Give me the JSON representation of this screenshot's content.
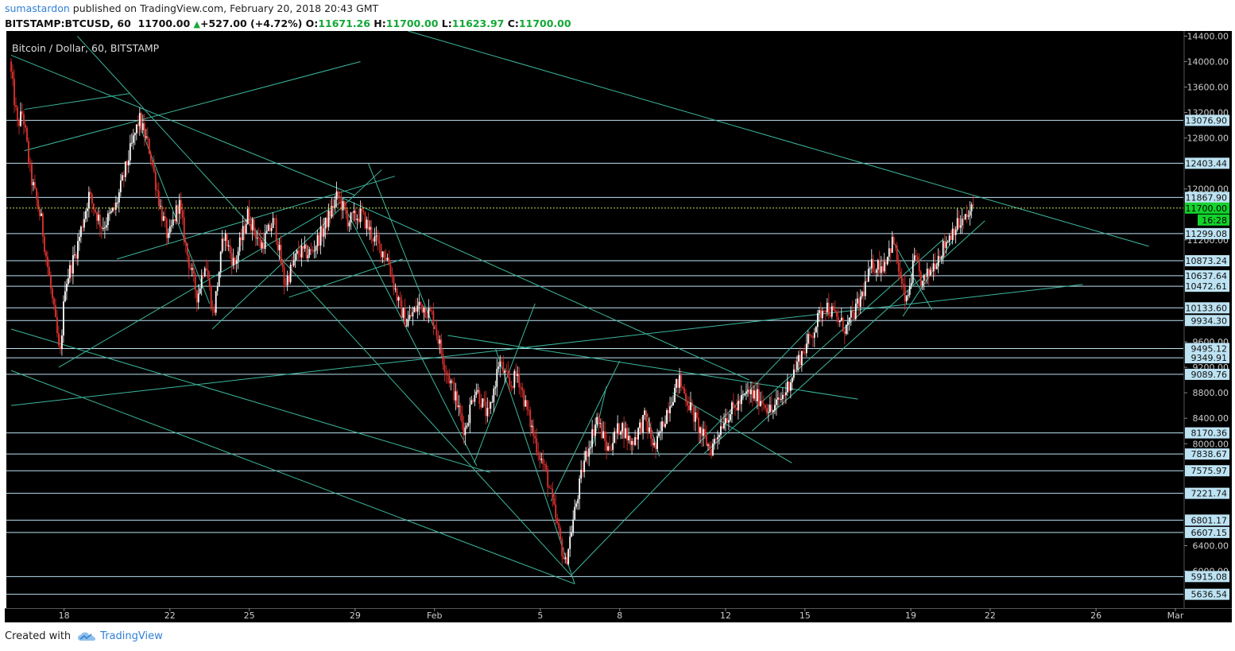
{
  "header": {
    "author": "sumastardon",
    "published_text": "published on TradingView.com, February 20, 2018 20:43 GMT",
    "symbol": "BITSTAMP:BTCUSD, 60",
    "last": "11700.00",
    "change": "+527.00 (+4.72%)",
    "o_label": "O:",
    "o_value": "11671.26",
    "h_label": "H:",
    "h_value": "11700.00",
    "l_label": "L:",
    "l_value": "11623.97",
    "c_label": "C:",
    "c_value": "11700.00"
  },
  "footer": {
    "created_with": "Created with",
    "brand": "TradingView"
  },
  "colors": {
    "background": "#000000",
    "trendline": "#3cb79e",
    "hline": "#bde3f3",
    "label_bg": "#bde3f3",
    "candle_up": "#ffffff",
    "candle_down": "#e0322f",
    "price_highlight": "#13d32c",
    "last_price_line": "#b8e05a"
  },
  "chart_data": {
    "type": "candlestick",
    "title": "Bitcoin / Dollar, 60, BITSTAMP",
    "y_ticks": [
      14400,
      14000,
      13600,
      13200,
      12800,
      12400,
      12000,
      11600,
      11200,
      10800,
      10400,
      10000,
      9600,
      9200,
      8800,
      8400,
      8000,
      7600,
      7200,
      6800,
      6400,
      6000
    ],
    "y_tick_labels": [
      "14400.00",
      "14000.00",
      "13600.00",
      "13200.00",
      "12800.00",
      "",
      "12000.00",
      "",
      "11200.00",
      "",
      "",
      "",
      "9600.00",
      "9200.00",
      "8800.00",
      "8400.00",
      "8000.00",
      "",
      "",
      "",
      "6400.00",
      "6000.00"
    ],
    "ylim": [
      5420,
      14480
    ],
    "x_ticks": [
      {
        "label": "18",
        "day": 2
      },
      {
        "label": "22",
        "day": 6
      },
      {
        "label": "25",
        "day": 9
      },
      {
        "label": "29",
        "day": 13
      },
      {
        "label": "Feb",
        "day": 16
      },
      {
        "label": "5",
        "day": 20
      },
      {
        "label": "8",
        "day": 23
      },
      {
        "label": "12",
        "day": 27
      },
      {
        "label": "15",
        "day": 30
      },
      {
        "label": "19",
        "day": 34
      },
      {
        "label": "22",
        "day": 37
      },
      {
        "label": "26",
        "day": 41
      },
      {
        "label": "Mar",
        "day": 44
      }
    ],
    "levels": [
      {
        "value": 13076.9,
        "label": "13076.90"
      },
      {
        "value": 12403.44,
        "label": "12403.44"
      },
      {
        "value": 11867.9,
        "label": "11867.90"
      },
      {
        "value": 11299.08,
        "label": "11299.08"
      },
      {
        "value": 10873.24,
        "label": "10873.24"
      },
      {
        "value": 10637.64,
        "label": "10637.64"
      },
      {
        "value": 10472.61,
        "label": "10472.61"
      },
      {
        "value": 10133.6,
        "label": "10133.60"
      },
      {
        "value": 9934.3,
        "label": "9934.30"
      },
      {
        "value": 9495.12,
        "label": "9495.12"
      },
      {
        "value": 9349.91,
        "label": "9349.91"
      },
      {
        "value": 9089.76,
        "label": "9089.76"
      },
      {
        "value": 8170.36,
        "label": "8170.36"
      },
      {
        "value": 7838.67,
        "label": "7838.67"
      },
      {
        "value": 7575.97,
        "label": "7575.97"
      },
      {
        "value": 7221.74,
        "label": "7221.74"
      },
      {
        "value": 6801.17,
        "label": "6801.17"
      },
      {
        "value": 6607.15,
        "label": "6607.15"
      },
      {
        "value": 5915.08,
        "label": "5915.08"
      },
      {
        "value": 5636.54,
        "label": "5636.54"
      }
    ],
    "last_price": {
      "value": 11700.0,
      "label": "11700.00",
      "countdown": "16:28"
    },
    "price_path": [
      {
        "day": 0.0,
        "price": 14000
      },
      {
        "day": 0.3,
        "price": 13000
      },
      {
        "day": 0.5,
        "price": 13200
      },
      {
        "day": 0.8,
        "price": 12200
      },
      {
        "day": 1.2,
        "price": 11500
      },
      {
        "day": 1.5,
        "price": 10600
      },
      {
        "day": 1.8,
        "price": 9700
      },
      {
        "day": 1.9,
        "price": 9300
      },
      {
        "day": 2.1,
        "price": 10500
      },
      {
        "day": 2.5,
        "price": 11000
      },
      {
        "day": 3.0,
        "price": 11900
      },
      {
        "day": 3.5,
        "price": 11400
      },
      {
        "day": 4.0,
        "price": 11700
      },
      {
        "day": 4.5,
        "price": 12500
      },
      {
        "day": 4.9,
        "price": 13100
      },
      {
        "day": 5.3,
        "price": 12600
      },
      {
        "day": 5.7,
        "price": 11700
      },
      {
        "day": 6.0,
        "price": 11200
      },
      {
        "day": 6.4,
        "price": 11800
      },
      {
        "day": 6.7,
        "price": 11000
      },
      {
        "day": 7.1,
        "price": 10300
      },
      {
        "day": 7.4,
        "price": 10900
      },
      {
        "day": 7.7,
        "price": 10000
      },
      {
        "day": 8.1,
        "price": 11300
      },
      {
        "day": 8.5,
        "price": 10800
      },
      {
        "day": 9.0,
        "price": 11600
      },
      {
        "day": 9.5,
        "price": 11100
      },
      {
        "day": 10.0,
        "price": 11500
      },
      {
        "day": 10.4,
        "price": 10500
      },
      {
        "day": 10.9,
        "price": 11000
      },
      {
        "day": 11.4,
        "price": 11000
      },
      {
        "day": 11.9,
        "price": 11400
      },
      {
        "day": 12.4,
        "price": 11900
      },
      {
        "day": 12.8,
        "price": 11500
      },
      {
        "day": 13.3,
        "price": 11600
      },
      {
        "day": 13.8,
        "price": 11200
      },
      {
        "day": 14.3,
        "price": 10900
      },
      {
        "day": 14.7,
        "price": 10200
      },
      {
        "day": 15.0,
        "price": 9900
      },
      {
        "day": 15.5,
        "price": 10200
      },
      {
        "day": 16.0,
        "price": 10000
      },
      {
        "day": 16.4,
        "price": 9300
      },
      {
        "day": 16.8,
        "price": 8800
      },
      {
        "day": 17.2,
        "price": 8200
      },
      {
        "day": 17.6,
        "price": 8900
      },
      {
        "day": 18.1,
        "price": 8400
      },
      {
        "day": 18.5,
        "price": 9300
      },
      {
        "day": 18.9,
        "price": 8900
      },
      {
        "day": 19.2,
        "price": 9100
      },
      {
        "day": 19.5,
        "price": 8600
      },
      {
        "day": 19.9,
        "price": 8000
      },
      {
        "day": 20.3,
        "price": 7500
      },
      {
        "day": 20.7,
        "price": 6700
      },
      {
        "day": 21.0,
        "price": 6100
      },
      {
        "day": 21.3,
        "price": 6800
      },
      {
        "day": 21.7,
        "price": 7700
      },
      {
        "day": 22.2,
        "price": 8400
      },
      {
        "day": 22.6,
        "price": 7900
      },
      {
        "day": 23.1,
        "price": 8300
      },
      {
        "day": 23.5,
        "price": 8000
      },
      {
        "day": 24.0,
        "price": 8400
      },
      {
        "day": 24.4,
        "price": 7900
      },
      {
        "day": 24.9,
        "price": 8600
      },
      {
        "day": 25.3,
        "price": 9000
      },
      {
        "day": 25.7,
        "price": 8600
      },
      {
        "day": 26.1,
        "price": 8200
      },
      {
        "day": 26.5,
        "price": 7900
      },
      {
        "day": 27.0,
        "price": 8400
      },
      {
        "day": 27.5,
        "price": 8600
      },
      {
        "day": 27.9,
        "price": 8800
      },
      {
        "day": 28.4,
        "price": 8700
      },
      {
        "day": 28.8,
        "price": 8500
      },
      {
        "day": 29.3,
        "price": 8800
      },
      {
        "day": 29.8,
        "price": 9300
      },
      {
        "day": 30.3,
        "price": 9700
      },
      {
        "day": 30.8,
        "price": 10200
      },
      {
        "day": 31.2,
        "price": 10000
      },
      {
        "day": 31.6,
        "price": 9800
      },
      {
        "day": 32.1,
        "price": 10200
      },
      {
        "day": 32.6,
        "price": 10800
      },
      {
        "day": 33.0,
        "price": 10800
      },
      {
        "day": 33.4,
        "price": 11200
      },
      {
        "day": 33.7,
        "price": 10500
      },
      {
        "day": 33.9,
        "price": 10200
      },
      {
        "day": 34.2,
        "price": 10900
      },
      {
        "day": 34.5,
        "price": 10500
      },
      {
        "day": 34.9,
        "price": 10800
      },
      {
        "day": 35.3,
        "price": 11100
      },
      {
        "day": 35.7,
        "price": 11400
      },
      {
        "day": 36.1,
        "price": 11500
      },
      {
        "day": 36.4,
        "price": 11700
      }
    ],
    "trendlines": [
      {
        "d1": 0.0,
        "p1": 9800,
        "d2": 18.1,
        "p2": 7550
      },
      {
        "d1": 2.5,
        "p1": 14400,
        "d2": 21.2,
        "p2": 5915
      },
      {
        "d1": 0.0,
        "p1": 9150,
        "d2": 21.3,
        "p2": 5800
      },
      {
        "d1": 0.0,
        "p1": 14100,
        "d2": 13.0,
        "p2": 11900
      },
      {
        "d1": 0.5,
        "p1": 13250,
        "d2": 4.5,
        "p2": 13500
      },
      {
        "d1": 0.5,
        "p1": 12600,
        "d2": 13.2,
        "p2": 14000
      },
      {
        "d1": 15.0,
        "p1": 14480,
        "d2": 43.0,
        "p2": 11100
      },
      {
        "d1": 1.8,
        "p1": 9200,
        "d2": 12.5,
        "p2": 11800
      },
      {
        "d1": 4.8,
        "p1": 13050,
        "d2": 7.5,
        "p2": 10200
      },
      {
        "d1": 7.6,
        "p1": 9800,
        "d2": 14.0,
        "p2": 12300
      },
      {
        "d1": 4.0,
        "p1": 10900,
        "d2": 14.5,
        "p2": 12200
      },
      {
        "d1": 10.5,
        "p1": 10300,
        "d2": 14.8,
        "p2": 10900
      },
      {
        "d1": 12.5,
        "p1": 11800,
        "d2": 17.6,
        "p2": 7650
      },
      {
        "d1": 13.5,
        "p1": 12400,
        "d2": 16.0,
        "p2": 9800
      },
      {
        "d1": 12.3,
        "p1": 11900,
        "d2": 27.9,
        "p2": 9000
      },
      {
        "d1": 0.0,
        "p1": 8600,
        "d2": 40.5,
        "p2": 10500
      },
      {
        "d1": 16.5,
        "p1": 9700,
        "d2": 32.0,
        "p2": 8700
      },
      {
        "d1": 17.5,
        "p1": 7700,
        "d2": 19.8,
        "p2": 10200
      },
      {
        "d1": 18.3,
        "p1": 9500,
        "d2": 21.3,
        "p2": 5800
      },
      {
        "d1": 20.4,
        "p1": 7100,
        "d2": 23.0,
        "p2": 9300
      },
      {
        "d1": 21.2,
        "p1": 5950,
        "d2": 30.5,
        "p2": 9950
      },
      {
        "d1": 26.2,
        "p1": 7850,
        "d2": 35.2,
        "p2": 11200
      },
      {
        "d1": 28.0,
        "p1": 8200,
        "d2": 36.8,
        "p2": 11500
      },
      {
        "d1": 33.7,
        "p1": 10000,
        "d2": 35.6,
        "p2": 11200
      },
      {
        "d1": 33.3,
        "p1": 11200,
        "d2": 34.8,
        "p2": 10100
      },
      {
        "d1": 25.0,
        "p1": 8800,
        "d2": 29.5,
        "p2": 7700
      },
      {
        "d1": 22.0,
        "p1": 8000,
        "d2": 22.5,
        "p2": 8900
      },
      {
        "d1": 24.0,
        "p1": 8500,
        "d2": 24.5,
        "p2": 7800
      }
    ]
  }
}
